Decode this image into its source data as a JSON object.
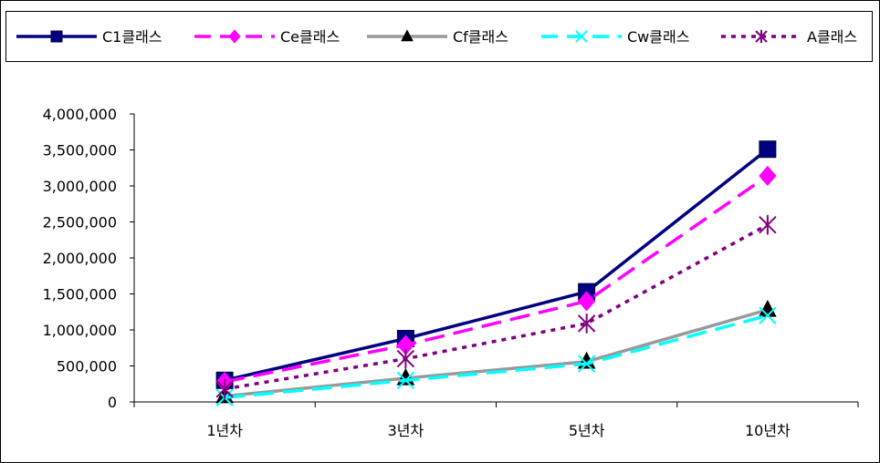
{
  "chart_data": {
    "type": "line",
    "categories": [
      "1년차",
      "3년차",
      "5년차",
      "10년차"
    ],
    "ylim": [
      0,
      4000000
    ],
    "y_ticks": [
      0,
      500000,
      1000000,
      1500000,
      2000000,
      2500000,
      3000000,
      3500000,
      4000000
    ],
    "y_tick_labels": [
      "0",
      "500,000",
      "1,000,000",
      "1,500,000",
      "2,000,000",
      "2,500,000",
      "3,000,000",
      "3,500,000",
      "4,000,000"
    ],
    "grid": false,
    "legend_position": "top",
    "series": [
      {
        "name": "C1클래스",
        "values": [
          300000,
          880000,
          1530000,
          3510000
        ],
        "color": "#000080",
        "dash": "solid",
        "marker": "square"
      },
      {
        "name": "Ce클래스",
        "values": [
          280000,
          790000,
          1400000,
          3140000
        ],
        "color": "#ff00ff",
        "dash": "dash",
        "marker": "diamond"
      },
      {
        "name": "Cf클래스",
        "values": [
          80000,
          330000,
          560000,
          1280000
        ],
        "color": "#999999",
        "dash": "solid",
        "marker": "triangle"
      },
      {
        "name": "Cw클래스",
        "values": [
          60000,
          300000,
          530000,
          1200000
        ],
        "color": "#00ffff",
        "dash": "dash",
        "marker": "x"
      },
      {
        "name": "A클래스",
        "values": [
          180000,
          600000,
          1090000,
          2460000
        ],
        "color": "#800080",
        "dash": "dot",
        "marker": "asterisk"
      }
    ]
  }
}
